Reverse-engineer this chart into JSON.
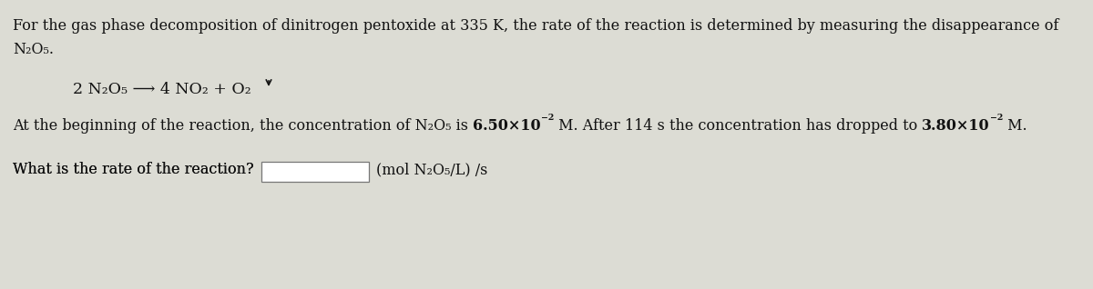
{
  "bg_color": "#dcdcd4",
  "text_color": "#111111",
  "figsize": [
    12.0,
    3.18
  ],
  "dpi": 100,
  "line1": "For the gas phase decomposition of dinitrogen pentoxide at 335 K, the rate of the reaction is determined by measuring the disappearance of",
  "line2": "N₂O₅.",
  "equation": "2 N₂O₅ ⟶ 4 NO₂ + O₂",
  "line3_seg1": "At the beginning of the reaction, the concentration of N₂O₅ is ",
  "line3_bold1": "6.50×10",
  "line3_sup1": "−2",
  "line3_seg2": " M. After 114 s the concentration has dropped to ",
  "line3_bold2": "3.80×10",
  "line3_sup2": "−2",
  "line3_seg3": " M.",
  "line4_q": "What is the rate of the reaction?",
  "line4_units": "(mol N₂O₅/L) /s",
  "font_size_main": 11.5,
  "font_size_eq": 12.5
}
